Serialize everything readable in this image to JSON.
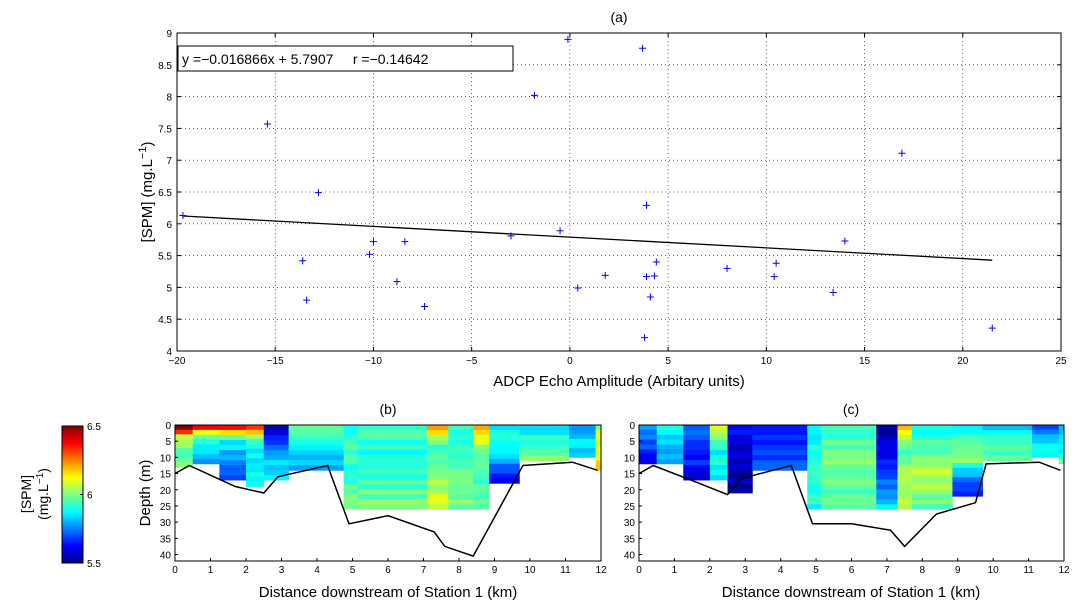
{
  "chart_data": [
    {
      "type": "scatter",
      "title": "(a)",
      "xlabel": "ADCP Echo Amplitude (Arbitary units)",
      "ylabel": "[SPM] (mg.L",
      "ylabel_sup": "−1",
      "ylabel_close": ")",
      "xlim": [
        -20,
        25
      ],
      "ylim": [
        4,
        9
      ],
      "xticks": [
        -20,
        -15,
        -10,
        -5,
        0,
        5,
        10,
        15,
        20,
        25
      ],
      "yticks": [
        4,
        4.5,
        5,
        5.5,
        6,
        6.5,
        7,
        7.5,
        8,
        8.5,
        9
      ],
      "xtick_labels": [
        "−20",
        "−15",
        "−10",
        "−5",
        "0",
        "5",
        "10",
        "15",
        "20",
        "25"
      ],
      "ytick_labels": [
        "4",
        "4.5",
        "5",
        "5.5",
        "6",
        "6.5",
        "7",
        "7.5",
        "8",
        "8.5",
        "9"
      ],
      "grid": "dotted",
      "marker": "+",
      "marker_color": "#0000ff",
      "fit_color": "#000000",
      "annotation": "y =−0.016866x + 5.7907     r =−0.14642",
      "fit": {
        "slope": -0.016866,
        "intercept": 5.7907,
        "x_range": [
          -19.7,
          21.5
        ]
      },
      "points": [
        [
          -19.7,
          6.13
        ],
        [
          -15.4,
          7.57
        ],
        [
          -13.6,
          5.42
        ],
        [
          -13.4,
          4.8
        ],
        [
          -12.8,
          6.49
        ],
        [
          -10.2,
          5.52
        ],
        [
          -10.0,
          5.72
        ],
        [
          -8.8,
          5.09
        ],
        [
          -8.4,
          5.72
        ],
        [
          -7.4,
          4.7
        ],
        [
          -3.0,
          5.81
        ],
        [
          -1.8,
          8.02
        ],
        [
          -0.5,
          5.89
        ],
        [
          -0.1,
          8.9
        ],
        [
          0.4,
          4.99
        ],
        [
          1.8,
          5.19
        ],
        [
          3.7,
          8.76
        ],
        [
          3.8,
          4.21
        ],
        [
          3.9,
          6.29
        ],
        [
          3.9,
          5.17
        ],
        [
          4.1,
          4.85
        ],
        [
          4.3,
          5.18
        ],
        [
          4.4,
          5.4
        ],
        [
          8.0,
          5.3
        ],
        [
          10.4,
          5.17
        ],
        [
          10.5,
          5.38
        ],
        [
          13.4,
          4.92
        ],
        [
          14.0,
          5.73
        ],
        [
          16.9,
          7.11
        ],
        [
          21.5,
          4.36
        ]
      ]
    },
    {
      "type": "heatmap",
      "title": "(b)",
      "xlabel": "Distance downstream of Station 1 (km)",
      "ylabel": "Depth (m)",
      "xlim": [
        0,
        12
      ],
      "ylim": [
        42,
        0
      ],
      "xticks": [
        "0",
        "1",
        "2",
        "3",
        "4",
        "5",
        "6",
        "7",
        "8",
        "9",
        "10",
        "11",
        "12"
      ],
      "yticks": [
        "0",
        "5",
        "10",
        "15",
        "20",
        "25",
        "30",
        "35",
        "40"
      ],
      "bed_profile": [
        [
          0,
          15
        ],
        [
          0.4,
          12.5
        ],
        [
          1.7,
          19
        ],
        [
          2.5,
          21
        ],
        [
          2.9,
          16
        ],
        [
          4.3,
          12.5
        ],
        [
          4.9,
          30.5
        ],
        [
          6.0,
          28
        ],
        [
          7.3,
          33
        ],
        [
          7.6,
          37.5
        ],
        [
          8.4,
          40.5
        ],
        [
          9.8,
          12.5
        ],
        [
          11.2,
          11.5
        ],
        [
          11.9,
          14
        ]
      ],
      "columns": [
        {
          "x0": 0.0,
          "x1": 0.5,
          "depth": 13,
          "values": [
            6.5,
            6.1,
            6.0,
            5.95,
            6.0
          ]
        },
        {
          "x0": 0.5,
          "x1": 1.25,
          "depth": 12,
          "values": [
            6.4,
            5.95,
            5.9,
            5.85,
            5.8
          ]
        },
        {
          "x0": 1.25,
          "x1": 2.0,
          "depth": 17,
          "values": [
            6.35,
            5.9,
            5.8,
            5.75,
            5.7
          ]
        },
        {
          "x0": 2.0,
          "x1": 2.5,
          "depth": 19,
          "values": [
            6.3,
            5.95,
            5.85,
            5.85,
            5.9
          ]
        },
        {
          "x0": 2.5,
          "x1": 3.2,
          "depth": 17,
          "values": [
            5.55,
            5.65,
            5.8,
            5.85,
            5.85
          ]
        },
        {
          "x0": 3.2,
          "x1": 4.75,
          "depth": 14,
          "values": [
            5.95,
            5.9,
            5.85,
            5.8,
            5.8
          ]
        },
        {
          "x0": 4.75,
          "x1": 5.15,
          "depth": 26,
          "values": [
            5.9,
            5.95,
            5.9,
            5.95,
            6.0
          ]
        },
        {
          "x0": 5.15,
          "x1": 7.1,
          "depth": 26,
          "values": [
            5.95,
            5.9,
            5.9,
            5.95,
            6.0
          ]
        },
        {
          "x0": 7.1,
          "x1": 7.7,
          "depth": 26,
          "values": [
            6.2,
            5.95,
            6.0,
            6.05,
            6.1
          ]
        },
        {
          "x0": 7.7,
          "x1": 8.4,
          "depth": 26,
          "values": [
            5.95,
            5.9,
            5.95,
            6.0,
            6.0
          ]
        },
        {
          "x0": 8.4,
          "x1": 8.85,
          "depth": 26,
          "values": [
            6.25,
            6.0,
            5.95,
            5.95,
            5.95
          ]
        },
        {
          "x0": 8.85,
          "x1": 9.7,
          "depth": 18,
          "values": [
            5.85,
            5.9,
            5.85,
            5.7,
            5.6
          ]
        },
        {
          "x0": 9.7,
          "x1": 11.1,
          "depth": 11,
          "values": [
            5.85,
            5.9,
            5.9,
            5.95,
            6.0
          ]
        },
        {
          "x0": 11.1,
          "x1": 11.85,
          "depth": 10,
          "values": [
            5.75,
            5.8,
            5.85,
            5.85,
            5.85
          ]
        },
        {
          "x0": 11.85,
          "x1": 12.0,
          "depth": 14,
          "values": [
            6.0,
            6.1,
            6.1,
            6.15,
            6.2
          ]
        }
      ]
    },
    {
      "type": "heatmap",
      "title": "(c)",
      "xlabel": "Distance downstream of Station 1 (km)",
      "ylabel": "",
      "xlim": [
        0,
        12
      ],
      "ylim": [
        42,
        0
      ],
      "xticks": [
        "0",
        "1",
        "2",
        "3",
        "4",
        "5",
        "6",
        "7",
        "8",
        "9",
        "10",
        "11",
        "12"
      ],
      "yticks": [
        "0",
        "5",
        "10",
        "15",
        "20",
        "25",
        "30",
        "35",
        "40"
      ],
      "bed_profile": [
        [
          0,
          15
        ],
        [
          0.4,
          12.5
        ],
        [
          1.7,
          18
        ],
        [
          2.5,
          21.5
        ],
        [
          2.9,
          16.5
        ],
        [
          4.3,
          12.5
        ],
        [
          4.9,
          30.5
        ],
        [
          6.0,
          30.5
        ],
        [
          7.1,
          32.5
        ],
        [
          7.5,
          37.5
        ],
        [
          8.4,
          27.5
        ],
        [
          9.5,
          24
        ],
        [
          9.8,
          12
        ],
        [
          11.3,
          11.5
        ],
        [
          11.9,
          14
        ]
      ],
      "columns": [
        {
          "x0": 0.0,
          "x1": 0.5,
          "depth": 12,
          "values": [
            5.8,
            5.75,
            5.7,
            5.65,
            5.6
          ]
        },
        {
          "x0": 0.5,
          "x1": 1.25,
          "depth": 12,
          "values": [
            5.9,
            5.85,
            5.85,
            5.8,
            5.8
          ]
        },
        {
          "x0": 1.25,
          "x1": 2.0,
          "depth": 17,
          "values": [
            5.75,
            5.7,
            5.65,
            5.65,
            5.6
          ]
        },
        {
          "x0": 2.0,
          "x1": 2.5,
          "depth": 17,
          "values": [
            6.1,
            5.95,
            5.85,
            5.9,
            5.85
          ]
        },
        {
          "x0": 2.5,
          "x1": 3.2,
          "depth": 21,
          "values": [
            5.65,
            5.6,
            5.55,
            5.55,
            5.55
          ]
        },
        {
          "x0": 3.2,
          "x1": 4.75,
          "depth": 14,
          "values": [
            5.65,
            5.65,
            5.65,
            5.7,
            5.7
          ]
        },
        {
          "x0": 4.75,
          "x1": 5.15,
          "depth": 26,
          "values": [
            5.85,
            5.9,
            5.9,
            5.9,
            5.9
          ]
        },
        {
          "x0": 5.15,
          "x1": 6.7,
          "depth": 26,
          "values": [
            5.95,
            5.95,
            6.0,
            5.95,
            5.95
          ]
        },
        {
          "x0": 6.7,
          "x1": 7.3,
          "depth": 26,
          "values": [
            5.55,
            5.6,
            5.65,
            5.75,
            5.85
          ]
        },
        {
          "x0": 7.3,
          "x1": 7.7,
          "depth": 26,
          "values": [
            6.2,
            5.95,
            6.0,
            6.05,
            6.05
          ]
        },
        {
          "x0": 7.7,
          "x1": 8.85,
          "depth": 26,
          "values": [
            5.9,
            5.95,
            6.05,
            6.05,
            5.95
          ]
        },
        {
          "x0": 8.85,
          "x1": 9.7,
          "depth": 22,
          "values": [
            5.85,
            6.0,
            6.0,
            5.75,
            5.65
          ]
        },
        {
          "x0": 9.7,
          "x1": 11.1,
          "depth": 11,
          "values": [
            5.85,
            5.9,
            5.9,
            5.95,
            6.0
          ]
        },
        {
          "x0": 11.1,
          "x1": 11.85,
          "depth": 10,
          "values": [
            5.7,
            5.8,
            5.85,
            5.85,
            5.85
          ]
        },
        {
          "x0": 11.85,
          "x1": 12.0,
          "depth": 12,
          "values": [
            5.8,
            5.85,
            5.85,
            5.9,
            5.95
          ]
        }
      ]
    }
  ],
  "colorbar": {
    "label": "[SPM]",
    "units": "(mg.L",
    "units_sup": "−1",
    "units_close": ")",
    "min": 5.5,
    "max": 6.5,
    "ticks": [
      "6.5",
      "6",
      "5.5"
    ],
    "tick_values": [
      6.5,
      6,
      5.5
    ],
    "colormap": "jet"
  }
}
